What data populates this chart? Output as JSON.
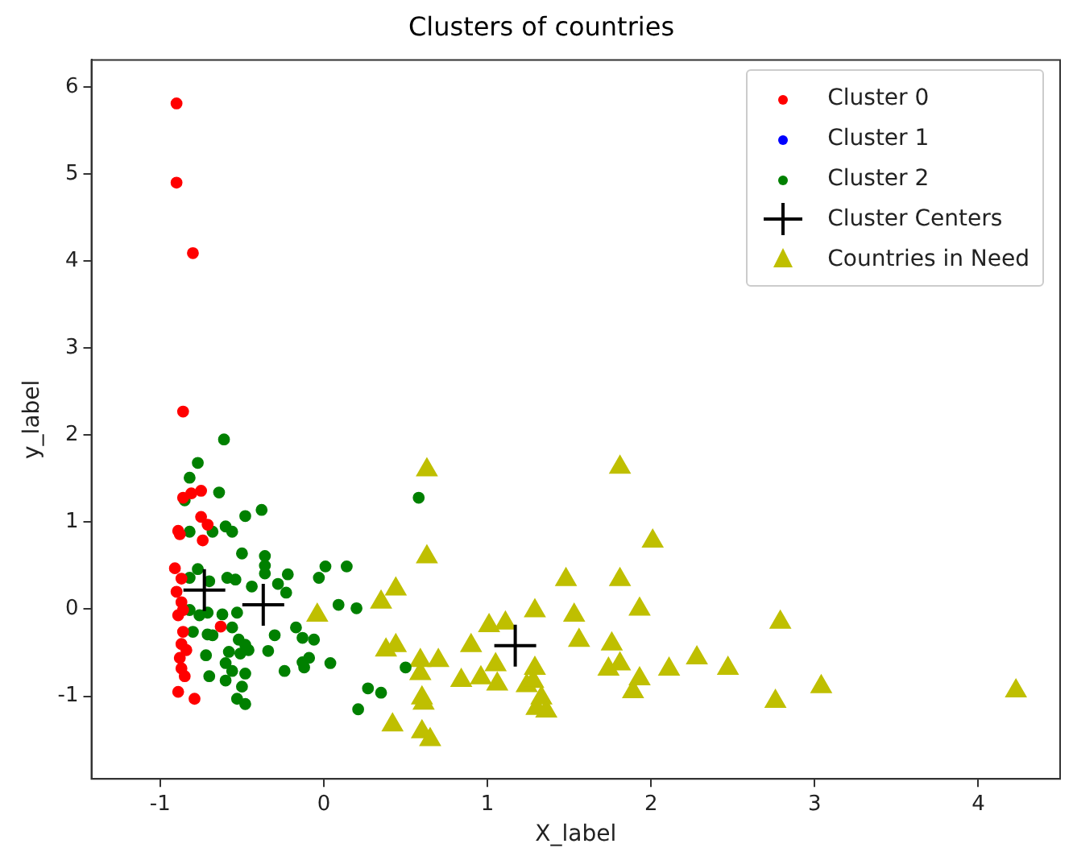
{
  "chart_data": {
    "type": "scatter",
    "title": "Clusters of countries",
    "xlabel": "X_label",
    "ylabel": "y_label",
    "xlim": [
      -1.42,
      4.5
    ],
    "ylim": [
      -1.95,
      6.31
    ],
    "xticks": [
      -1,
      0,
      1,
      2,
      3,
      4
    ],
    "yticks": [
      -1,
      0,
      1,
      2,
      3,
      4,
      5,
      6
    ],
    "grid": false,
    "legend": "top right",
    "series": [
      {
        "name": "Cluster 0",
        "color": "#ff0000",
        "marker": "circle",
        "x": [
          -0.9,
          -0.9,
          -0.8,
          -0.86,
          -0.86,
          -0.81,
          -0.75,
          -0.75,
          -0.71,
          -0.89,
          -0.88,
          -0.74,
          -0.91,
          -0.87,
          -0.9,
          -0.87,
          -0.89,
          -0.86,
          -0.86,
          -0.87,
          -0.88,
          -0.84,
          -0.87,
          -0.85,
          -0.89,
          -0.79,
          -0.63
        ],
        "values": [
          5.81,
          4.9,
          4.09,
          2.27,
          1.28,
          1.33,
          1.36,
          1.06,
          0.97,
          0.9,
          0.86,
          0.79,
          0.47,
          0.35,
          0.2,
          0.08,
          -0.07,
          -0.01,
          -0.26,
          -0.4,
          -0.56,
          -0.47,
          -0.68,
          -0.77,
          -0.95,
          -1.03,
          -0.2
        ]
      },
      {
        "name": "Cluster 1",
        "color": "#0000ff",
        "marker": "circle"
      },
      {
        "name": "Cluster 2",
        "color": "#008000",
        "marker": "circle",
        "x": [
          -0.61,
          -0.77,
          -0.82,
          -0.64,
          -0.85,
          -0.38,
          -0.48,
          -0.6,
          -0.56,
          -0.82,
          -0.68,
          -0.5,
          -0.36,
          -0.36,
          -0.36,
          -0.22,
          -0.28,
          -0.23,
          -0.77,
          -0.59,
          -0.54,
          -0.44,
          -0.82,
          -0.7,
          0.01,
          0.14,
          -0.03,
          0.09,
          0.2,
          -0.82,
          -0.76,
          -0.71,
          -0.62,
          -0.53,
          -0.8,
          -0.71,
          -0.68,
          -0.56,
          -0.3,
          -0.17,
          -0.13,
          -0.06,
          -0.52,
          -0.48,
          -0.46,
          -0.58,
          -0.51,
          -0.72,
          -0.34,
          -0.09,
          -0.13,
          -0.12,
          0.04,
          -0.24,
          -0.6,
          -0.56,
          -0.48,
          -0.7,
          -0.6,
          -0.5,
          -0.53,
          -0.48,
          0.27,
          0.35,
          0.21,
          0.58,
          0.5
        ],
        "values": [
          1.95,
          1.68,
          1.51,
          1.34,
          1.25,
          1.14,
          1.07,
          0.95,
          0.89,
          0.89,
          0.89,
          0.64,
          0.61,
          0.5,
          0.41,
          0.4,
          0.29,
          0.19,
          0.46,
          0.36,
          0.34,
          0.26,
          0.36,
          0.32,
          0.49,
          0.49,
          0.36,
          0.05,
          0.01,
          -0.01,
          -0.07,
          -0.04,
          -0.06,
          -0.04,
          -0.26,
          -0.29,
          -0.3,
          -0.21,
          -0.3,
          -0.21,
          -0.33,
          -0.35,
          -0.35,
          -0.41,
          -0.47,
          -0.49,
          -0.51,
          -0.53,
          -0.48,
          -0.56,
          -0.61,
          -0.67,
          -0.62,
          -0.71,
          -0.62,
          -0.71,
          -0.74,
          -0.77,
          -0.82,
          -0.89,
          -1.03,
          -1.09,
          -0.91,
          -0.96,
          -1.15,
          1.28,
          -0.67
        ]
      },
      {
        "name": "Cluster Centers",
        "color": "#000000",
        "marker": "cross",
        "x": [
          -0.73,
          -0.37,
          1.17
        ],
        "values": [
          0.22,
          0.05,
          -0.42
        ]
      },
      {
        "name": "Countries in Need",
        "color": "#bfbf00",
        "marker": "triangle",
        "x": [
          0.63,
          1.81,
          2.01,
          0.63,
          0.44,
          0.35,
          1.48,
          1.81,
          1.29,
          1.53,
          1.93,
          1.01,
          1.11,
          1.56,
          1.76,
          0.9,
          0.38,
          0.44,
          1.05,
          0.7,
          0.59,
          0.59,
          1.29,
          1.74,
          1.81,
          1.93,
          2.11,
          0.84,
          0.96,
          1.06,
          1.24,
          1.28,
          1.89,
          1.33,
          0.6,
          0.61,
          1.3,
          1.36,
          0.42,
          0.6,
          0.65,
          -0.04,
          2.79,
          2.28,
          2.47,
          2.76,
          3.04,
          4.23
        ],
        "values": [
          1.6,
          1.63,
          0.78,
          0.6,
          0.23,
          0.08,
          0.34,
          0.34,
          -0.02,
          -0.07,
          0.0,
          -0.19,
          -0.16,
          -0.36,
          -0.4,
          -0.42,
          -0.47,
          -0.42,
          -0.64,
          -0.59,
          -0.59,
          -0.74,
          -0.68,
          -0.69,
          -0.63,
          -0.8,
          -0.69,
          -0.82,
          -0.79,
          -0.86,
          -0.88,
          -0.83,
          -0.95,
          -1.02,
          -1.02,
          -1.08,
          -1.14,
          -1.17,
          -1.33,
          -1.41,
          -1.5,
          -0.07,
          -0.15,
          -0.56,
          -0.68,
          -1.06,
          -0.89,
          -0.94
        ]
      }
    ]
  }
}
